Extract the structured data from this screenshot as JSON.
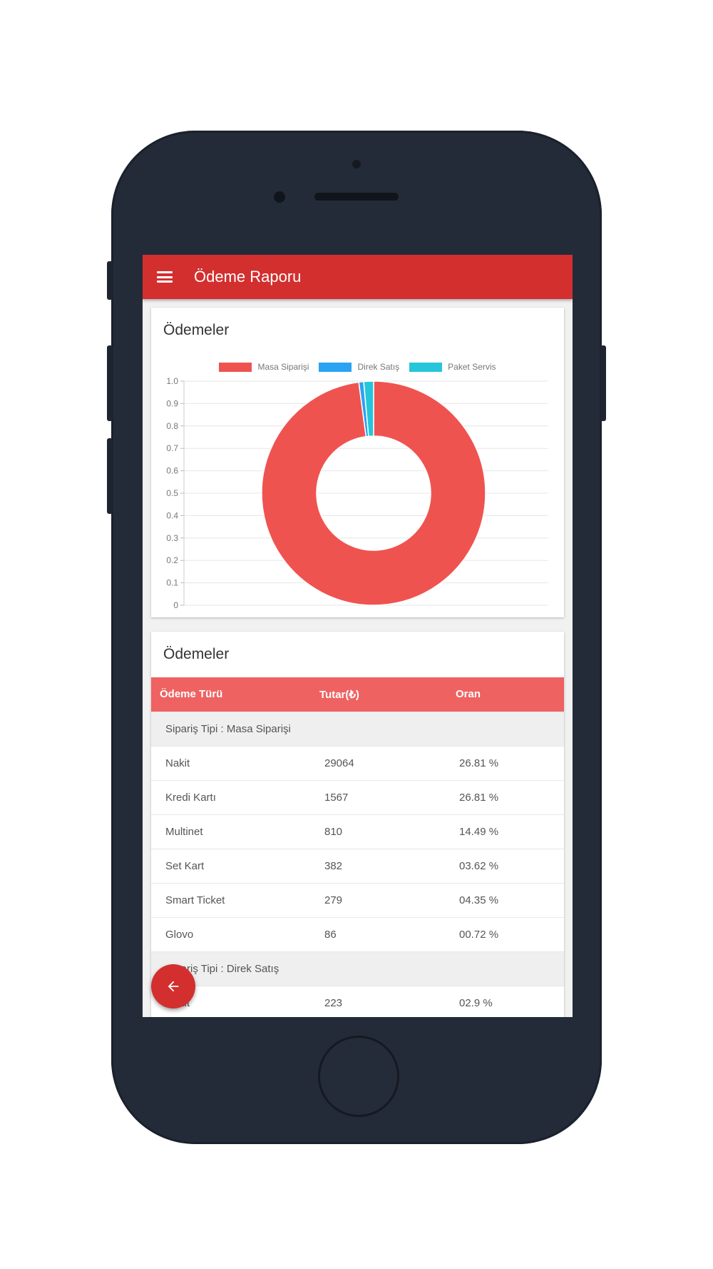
{
  "app": {
    "title": "Ödeme Raporu"
  },
  "chart_card": {
    "title": "Ödemeler"
  },
  "table_card": {
    "title": "Ödemeler"
  },
  "colors": {
    "primary": "#d32f2f",
    "table_header": "#ef6262",
    "masa": "#ef5350",
    "direk": "#29a3f2",
    "paket": "#26c6da"
  },
  "chart_data": {
    "type": "pie",
    "variant": "donut",
    "labels": [
      "Masa Siparişi",
      "Direk Satış",
      "Paket Servis"
    ],
    "values": [
      0.971,
      0.007,
      0.014
    ],
    "yticks": [
      "1.0",
      "0.9",
      "0.8",
      "0.7",
      "0.6",
      "0.5",
      "0.4",
      "0.3",
      "0.2",
      "0.1",
      "0"
    ],
    "ylim": [
      0,
      1
    ],
    "grid": true,
    "legend": "top"
  },
  "table": {
    "headers": [
      "Ödeme Türü",
      "Tutar(₺)",
      "Oran"
    ],
    "rows": [
      {
        "group": "Sipariş Tipi : Masa Siparişi"
      },
      {
        "cells": [
          "Nakit",
          "29064",
          "26.81 %"
        ]
      },
      {
        "cells": [
          "Kredi Kartı",
          "1567",
          "26.81 %"
        ]
      },
      {
        "cells": [
          "Multinet",
          "810",
          "14.49 %"
        ]
      },
      {
        "cells": [
          "Set Kart",
          "382",
          "03.62 %"
        ]
      },
      {
        "cells": [
          "Smart Ticket",
          "279",
          "04.35 %"
        ]
      },
      {
        "cells": [
          "Glovo",
          "86",
          "00.72 %"
        ]
      },
      {
        "group": "Sipariş Tipi : Direk Satış"
      },
      {
        "cells": [
          "Nakit",
          "223",
          "02.9 %"
        ]
      }
    ]
  },
  "icons": {
    "menu": "menu-icon",
    "back": "arrow-left-icon"
  }
}
